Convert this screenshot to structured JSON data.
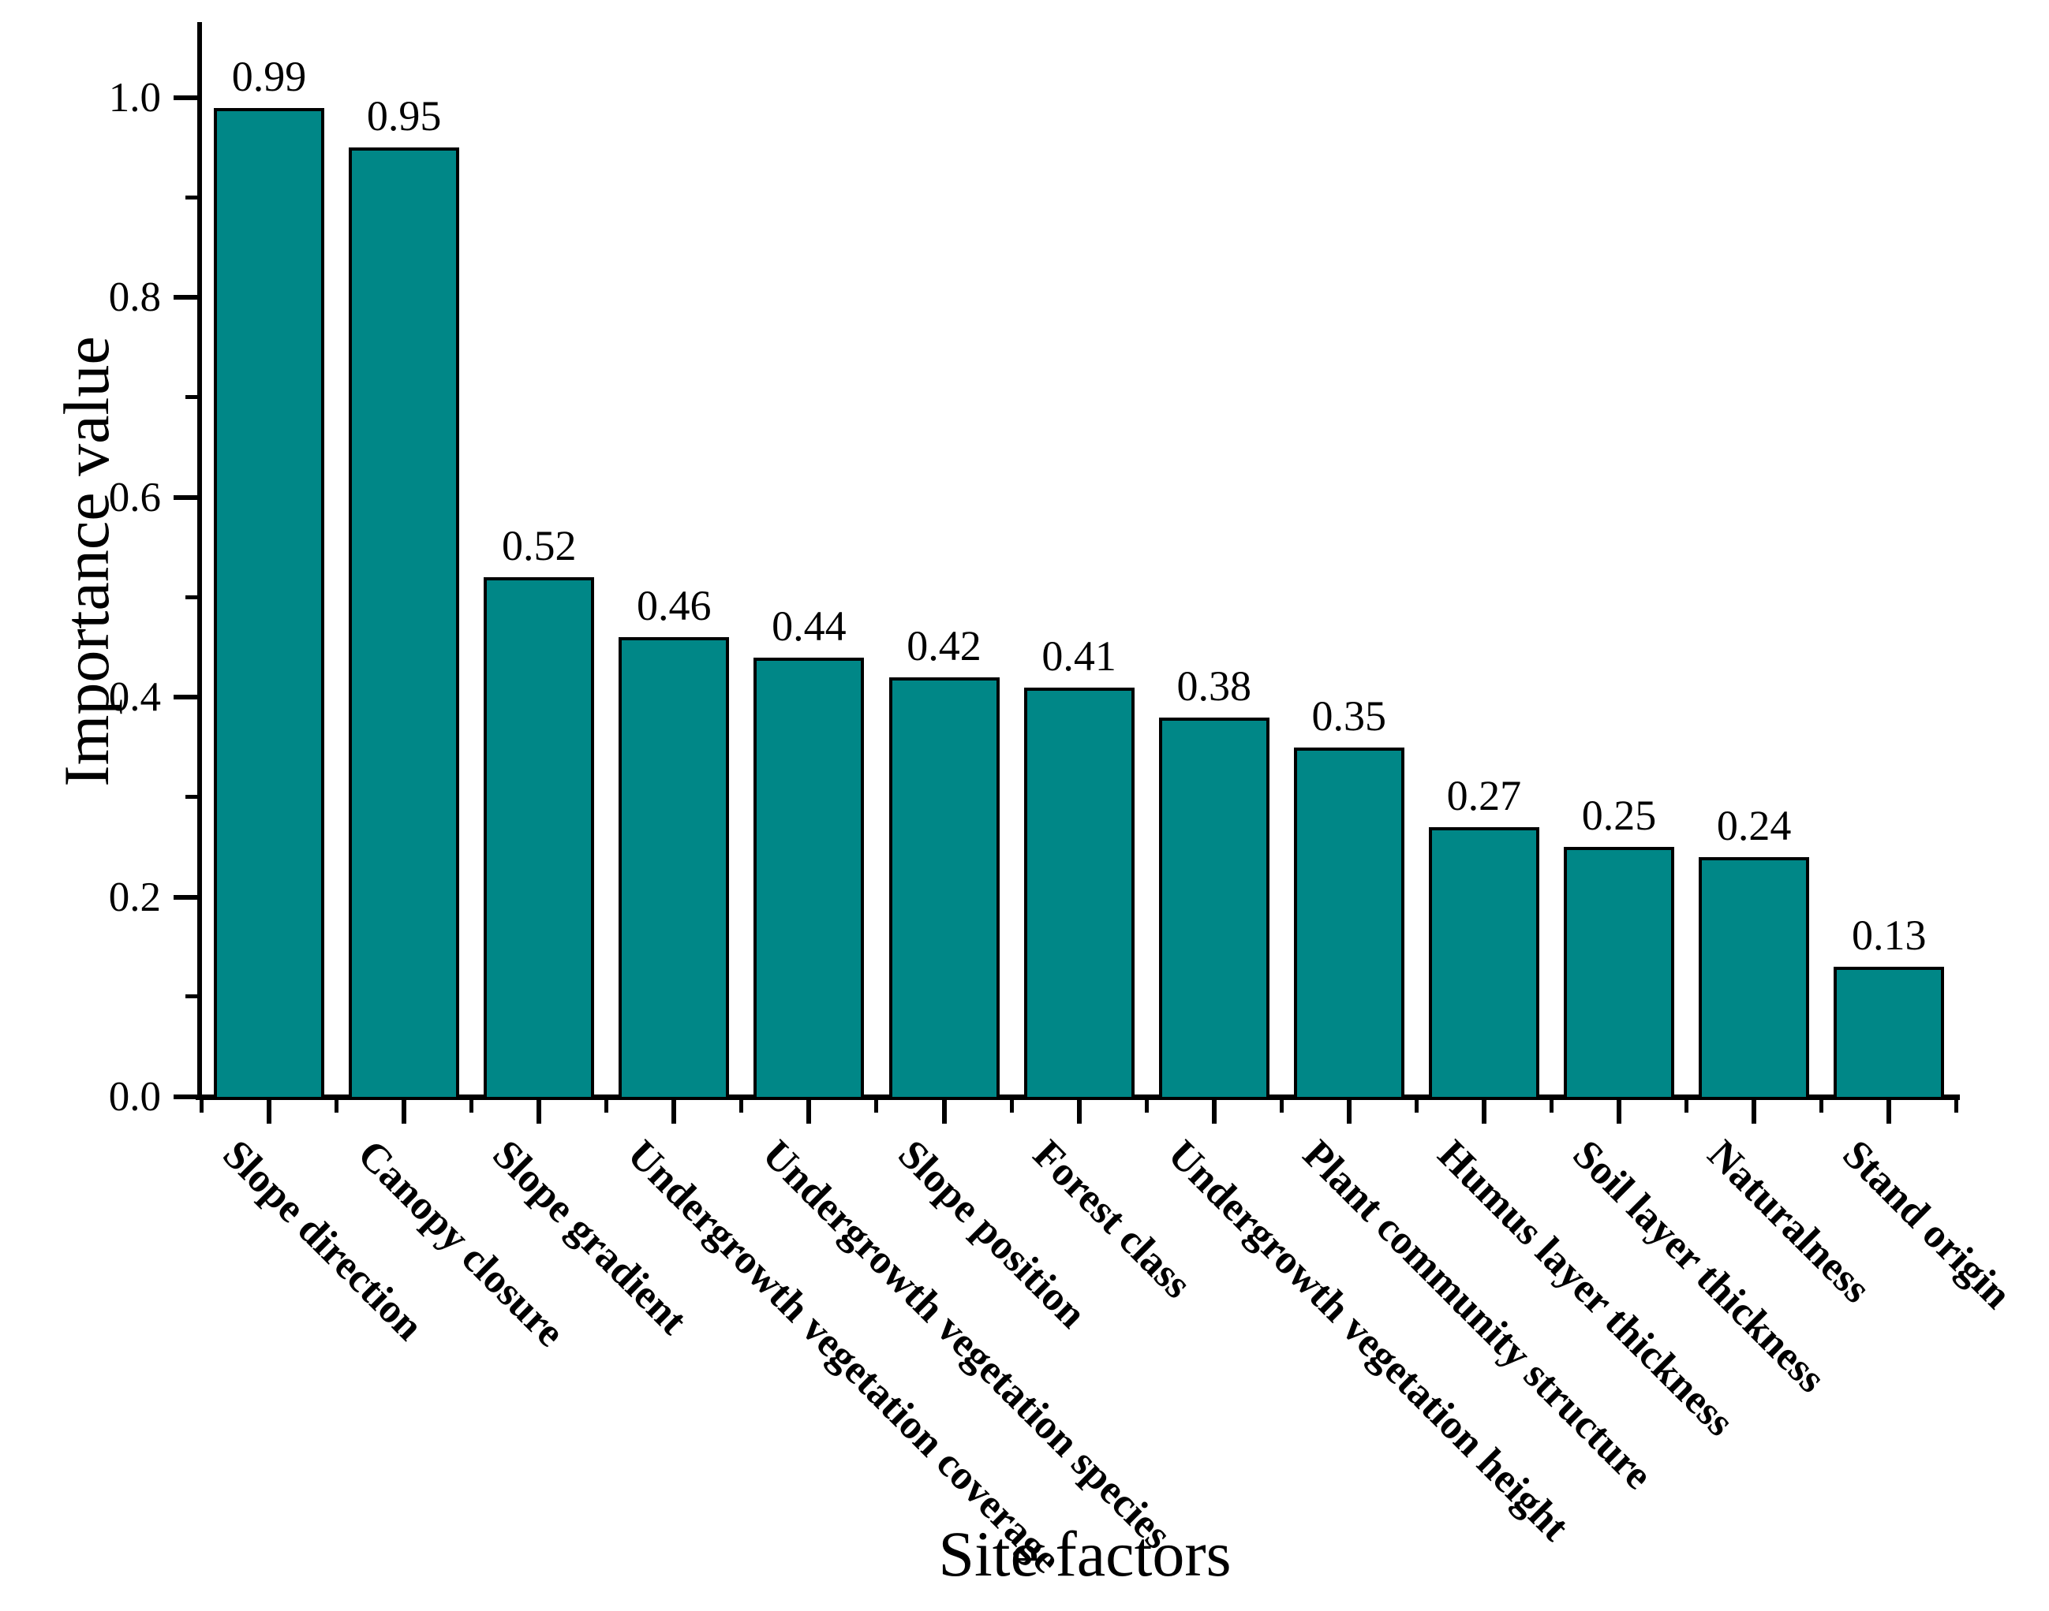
{
  "chart_data": {
    "type": "bar",
    "title": "",
    "xlabel": "Site factors",
    "ylabel": "Importance value",
    "categories": [
      "Slope direction",
      "Canopy closure",
      "Slope gradient",
      "Undergrowth vegetation coverage",
      "Undergrowth vegetation species",
      "Slope position",
      "Forest class",
      "Undergrowth vegetation height",
      "Plant community structure",
      "Humus layer thickness",
      "Soil layer thickness",
      "Naturalness",
      "Stand origin"
    ],
    "values": [
      0.99,
      0.95,
      0.52,
      0.46,
      0.44,
      0.42,
      0.41,
      0.38,
      0.35,
      0.27,
      0.25,
      0.24,
      0.13
    ],
    "value_labels": [
      "0.99",
      "0.95",
      "0.52",
      "0.46",
      "0.44",
      "0.42",
      "0.41",
      "0.38",
      "0.35",
      "0.27",
      "0.25",
      "0.24",
      "0.13"
    ],
    "ylim": [
      0.0,
      1.05
    ],
    "yticks_major": [
      0.0,
      0.2,
      0.4,
      0.6,
      0.8,
      1.0
    ],
    "ytick_labels": [
      "0.0",
      "0.2",
      "0.4",
      "0.6",
      "0.8",
      "1.0"
    ],
    "yticks_minor": [
      0.1,
      0.3,
      0.5,
      0.7,
      0.9
    ],
    "grid": false,
    "legend": null,
    "bar_fill_color": "#008787",
    "bar_border_color": "#000000",
    "axis_color": "#000000",
    "text_color": "#000000",
    "background_color": "#ffffff"
  }
}
